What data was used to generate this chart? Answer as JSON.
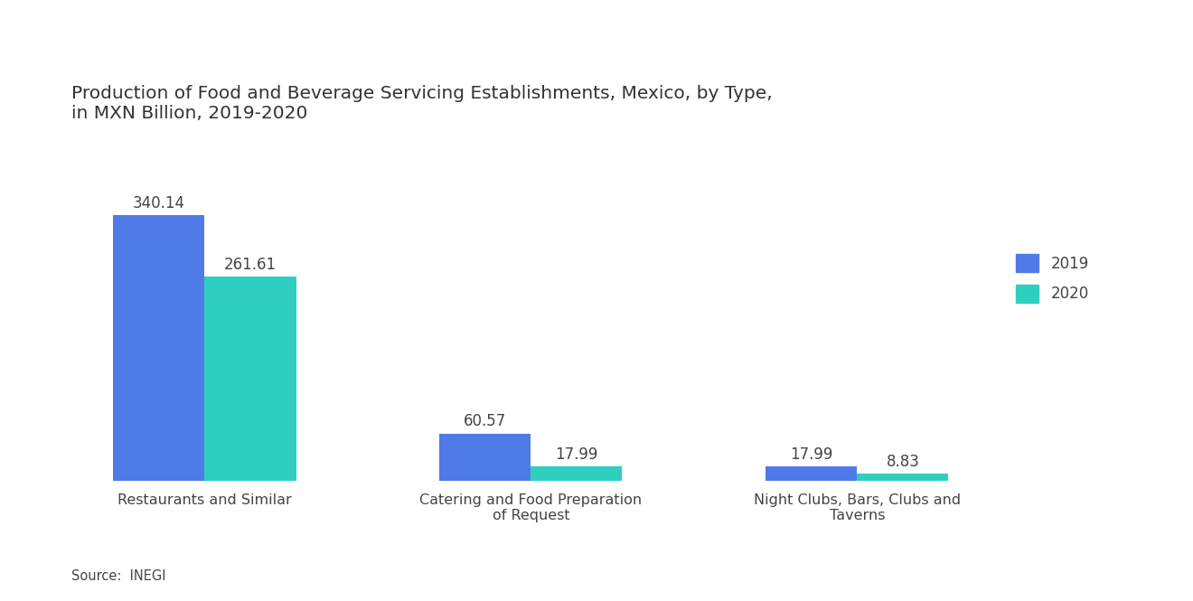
{
  "title_line1": "Production of Food and Beverage Servicing Establishments, Mexico, by Type,",
  "title_line2": "in MXN Billion, 2019-2020",
  "categories": [
    "Restaurants and Similar",
    "Catering and Food Preparation\nof Request",
    "Night Clubs, Bars, Clubs and\nTaverns"
  ],
  "values_2019": [
    340.14,
    60.57,
    17.99
  ],
  "values_2020": [
    261.61,
    17.99,
    8.83
  ],
  "color_2019": "#4F7BE8",
  "color_2020": "#2ECFBE",
  "legend_labels": [
    "2019",
    "2020"
  ],
  "source_text": "Source:  INEGI",
  "background_color": "#FFFFFF",
  "title_fontsize": 14.5,
  "label_fontsize": 11.5,
  "value_fontsize": 12,
  "bar_width": 0.28,
  "ylim": [
    0,
    400
  ]
}
